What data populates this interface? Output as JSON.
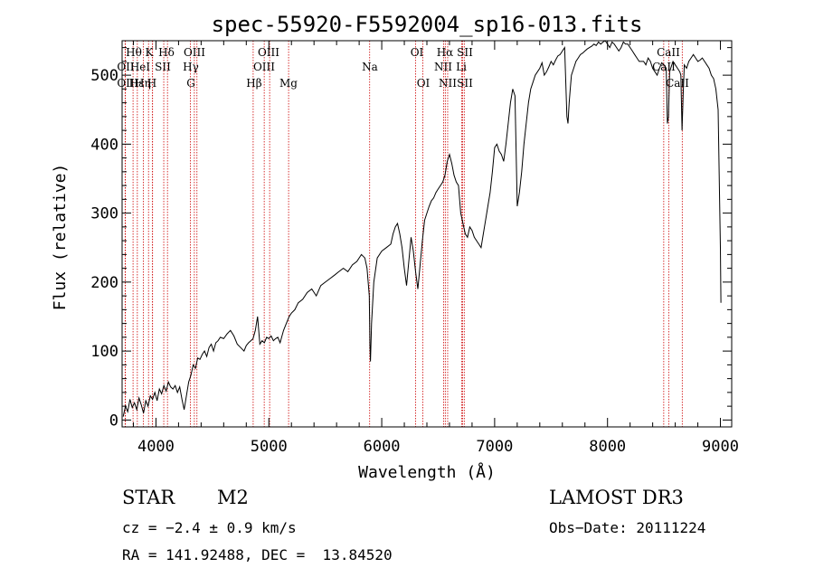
{
  "chart_data": {
    "type": "line",
    "title": "spec-55920-F5592004_sp16-013.fits",
    "xlabel": "Wavelength (Å)",
    "ylabel": "Flux (relative)",
    "xlim": [
      3700,
      9100
    ],
    "ylim": [
      -10,
      550
    ],
    "xticks": [
      4000,
      5000,
      6000,
      7000,
      8000,
      9000
    ],
    "yticks": [
      0,
      100,
      200,
      300,
      400,
      500
    ],
    "grid": false,
    "legend": "none",
    "line_color": "#000000",
    "marker_color": "#cc0000",
    "series": [
      {
        "name": "flux",
        "x": [
          3710,
          3730,
          3750,
          3770,
          3790,
          3810,
          3830,
          3850,
          3870,
          3890,
          3910,
          3930,
          3950,
          3970,
          3990,
          4010,
          4030,
          4050,
          4070,
          4090,
          4110,
          4130,
          4150,
          4170,
          4190,
          4210,
          4230,
          4250,
          4270,
          4290,
          4310,
          4330,
          4350,
          4370,
          4390,
          4410,
          4430,
          4450,
          4470,
          4490,
          4510,
          4530,
          4550,
          4570,
          4600,
          4630,
          4660,
          4690,
          4720,
          4750,
          4780,
          4800,
          4820,
          4840,
          4860,
          4880,
          4900,
          4920,
          4940,
          4960,
          4980,
          5000,
          5020,
          5040,
          5060,
          5080,
          5100,
          5130,
          5160,
          5180,
          5200,
          5230,
          5260,
          5300,
          5340,
          5380,
          5420,
          5460,
          5500,
          5540,
          5580,
          5620,
          5660,
          5700,
          5740,
          5780,
          5820,
          5850,
          5870,
          5890,
          5895,
          5900,
          5910,
          5930,
          5960,
          6000,
          6040,
          6080,
          6100,
          6120,
          6140,
          6160,
          6180,
          6200,
          6220,
          6240,
          6260,
          6280,
          6300,
          6320,
          6340,
          6360,
          6380,
          6400,
          6420,
          6440,
          6460,
          6480,
          6500,
          6520,
          6540,
          6560,
          6580,
          6600,
          6620,
          6640,
          6660,
          6680,
          6700,
          6720,
          6740,
          6760,
          6780,
          6800,
          6820,
          6840,
          6860,
          6880,
          6900,
          6920,
          6940,
          6960,
          6980,
          7000,
          7020,
          7040,
          7060,
          7080,
          7100,
          7120,
          7140,
          7160,
          7180,
          7200,
          7220,
          7240,
          7260,
          7280,
          7300,
          7320,
          7340,
          7360,
          7380,
          7400,
          7420,
          7440,
          7460,
          7480,
          7500,
          7520,
          7540,
          7560,
          7580,
          7600,
          7620,
          7640,
          7650,
          7660,
          7670,
          7680,
          7700,
          7720,
          7740,
          7760,
          7780,
          7800,
          7820,
          7840,
          7860,
          7880,
          7900,
          7920,
          7940,
          7960,
          7980,
          8000,
          8020,
          8040,
          8060,
          8080,
          8100,
          8120,
          8140,
          8160,
          8180,
          8200,
          8220,
          8240,
          8260,
          8280,
          8300,
          8320,
          8340,
          8360,
          8380,
          8400,
          8420,
          8440,
          8460,
          8480,
          8500,
          8520,
          8530,
          8540,
          8550,
          8560,
          8580,
          8600,
          8620,
          8640,
          8650,
          8660,
          8670,
          8680,
          8700,
          8720,
          8740,
          8760,
          8780,
          8800,
          8820,
          8840,
          8860,
          8880,
          8900,
          8920,
          8940,
          8960,
          8980,
          9000,
          9005
        ],
        "y": [
          5,
          20,
          12,
          30,
          18,
          25,
          15,
          32,
          22,
          10,
          28,
          20,
          35,
          30,
          40,
          28,
          45,
          38,
          50,
          42,
          55,
          48,
          45,
          50,
          40,
          48,
          30,
          15,
          35,
          55,
          65,
          80,
          75,
          90,
          88,
          95,
          100,
          92,
          105,
          110,
          100,
          112,
          115,
          120,
          118,
          125,
          130,
          122,
          110,
          105,
          100,
          108,
          112,
          115,
          118,
          130,
          150,
          110,
          115,
          112,
          120,
          118,
          122,
          115,
          118,
          120,
          112,
          130,
          142,
          150,
          155,
          160,
          170,
          175,
          185,
          190,
          180,
          195,
          200,
          205,
          210,
          215,
          220,
          215,
          225,
          230,
          240,
          235,
          220,
          180,
          110,
          85,
          140,
          200,
          235,
          245,
          250,
          255,
          270,
          280,
          285,
          270,
          250,
          220,
          195,
          230,
          265,
          245,
          215,
          190,
          225,
          260,
          290,
          300,
          310,
          318,
          322,
          330,
          335,
          340,
          345,
          355,
          375,
          385,
          372,
          355,
          345,
          340,
          300,
          285,
          270,
          265,
          280,
          275,
          265,
          260,
          255,
          250,
          270,
          290,
          310,
          330,
          360,
          395,
          400,
          390,
          385,
          375,
          400,
          430,
          460,
          480,
          470,
          310,
          330,
          360,
          400,
          430,
          460,
          480,
          490,
          500,
          505,
          510,
          518,
          500,
          505,
          512,
          520,
          515,
          522,
          528,
          530,
          535,
          540,
          440,
          430,
          460,
          480,
          500,
          510,
          520,
          525,
          530,
          532,
          535,
          538,
          540,
          542,
          545,
          543,
          548,
          545,
          548,
          550,
          545,
          540,
          548,
          545,
          540,
          535,
          540,
          548,
          545,
          545,
          540,
          535,
          530,
          525,
          520,
          520,
          520,
          515,
          525,
          520,
          510,
          505,
          500,
          510,
          518,
          515,
          510,
          430,
          440,
          505,
          510,
          520,
          515,
          510,
          505,
          500,
          420,
          470,
          515,
          510,
          520,
          525,
          530,
          525,
          520,
          522,
          525,
          520,
          515,
          510,
          500,
          495,
          480,
          450,
          250,
          170
        ]
      }
    ],
    "lines": [
      {
        "label": "Hθ",
        "x": 3797
      },
      {
        "label": "OII",
        "x": 3727
      },
      {
        "label": "OII",
        "x": 3729
      },
      {
        "label": "K",
        "x": 3934
      },
      {
        "label": "H",
        "x": 3969
      },
      {
        "label": "Hε",
        "x": 3970
      },
      {
        "label": "Hη",
        "x": 3835
      },
      {
        "label": "HeI",
        "x": 3889
      },
      {
        "label": "SII",
        "x": 4069
      },
      {
        "label": "Hδ",
        "x": 4102
      },
      {
        "label": "OIII",
        "x": 4363
      },
      {
        "label": "Hγ",
        "x": 4340
      },
      {
        "label": "G",
        "x": 4305
      },
      {
        "label": "Hβ",
        "x": 4861
      },
      {
        "label": "OIII",
        "x": 4959
      },
      {
        "label": "OIII",
        "x": 5007
      },
      {
        "label": "Mg",
        "x": 5175
      },
      {
        "label": "Na",
        "x": 5893
      },
      {
        "label": "OI",
        "x": 6300
      },
      {
        "label": "OI",
        "x": 6364
      },
      {
        "label": "Hα",
        "x": 6563
      },
      {
        "label": "NII",
        "x": 6548
      },
      {
        "label": "NII",
        "x": 6584
      },
      {
        "label": "SII",
        "x": 6717
      },
      {
        "label": "SII",
        "x": 6731
      },
      {
        "label": "Li",
        "x": 6708
      },
      {
        "label": "CaII",
        "x": 8498
      },
      {
        "label": "CaII",
        "x": 8542
      },
      {
        "label": "CaII",
        "x": 8662
      }
    ],
    "line_label_text": {
      "row1": [
        "Hθ",
        "K",
        "Hδ",
        "OIII",
        "OIII",
        "OI",
        "Hα",
        "SII",
        "CaII"
      ],
      "row2": [
        "OII",
        "HeI",
        "SII",
        "Hγ",
        "OIII",
        "Na",
        "NII",
        "Li",
        "CaII"
      ],
      "row3": [
        "OII",
        "Hε",
        "Hη",
        "H",
        "G",
        "Hβ",
        "Mg",
        "OI",
        "NII",
        "SII",
        "CaII"
      ]
    }
  },
  "info": {
    "object_class": "STAR",
    "subclass": "M2",
    "survey": "LAMOST DR3",
    "cz": "cz = −2.4 ± 0.9 km/s",
    "obs_date": "Obs−Date: 20111224",
    "coords": "RA = 141.92488, DEC =  13.84520"
  }
}
